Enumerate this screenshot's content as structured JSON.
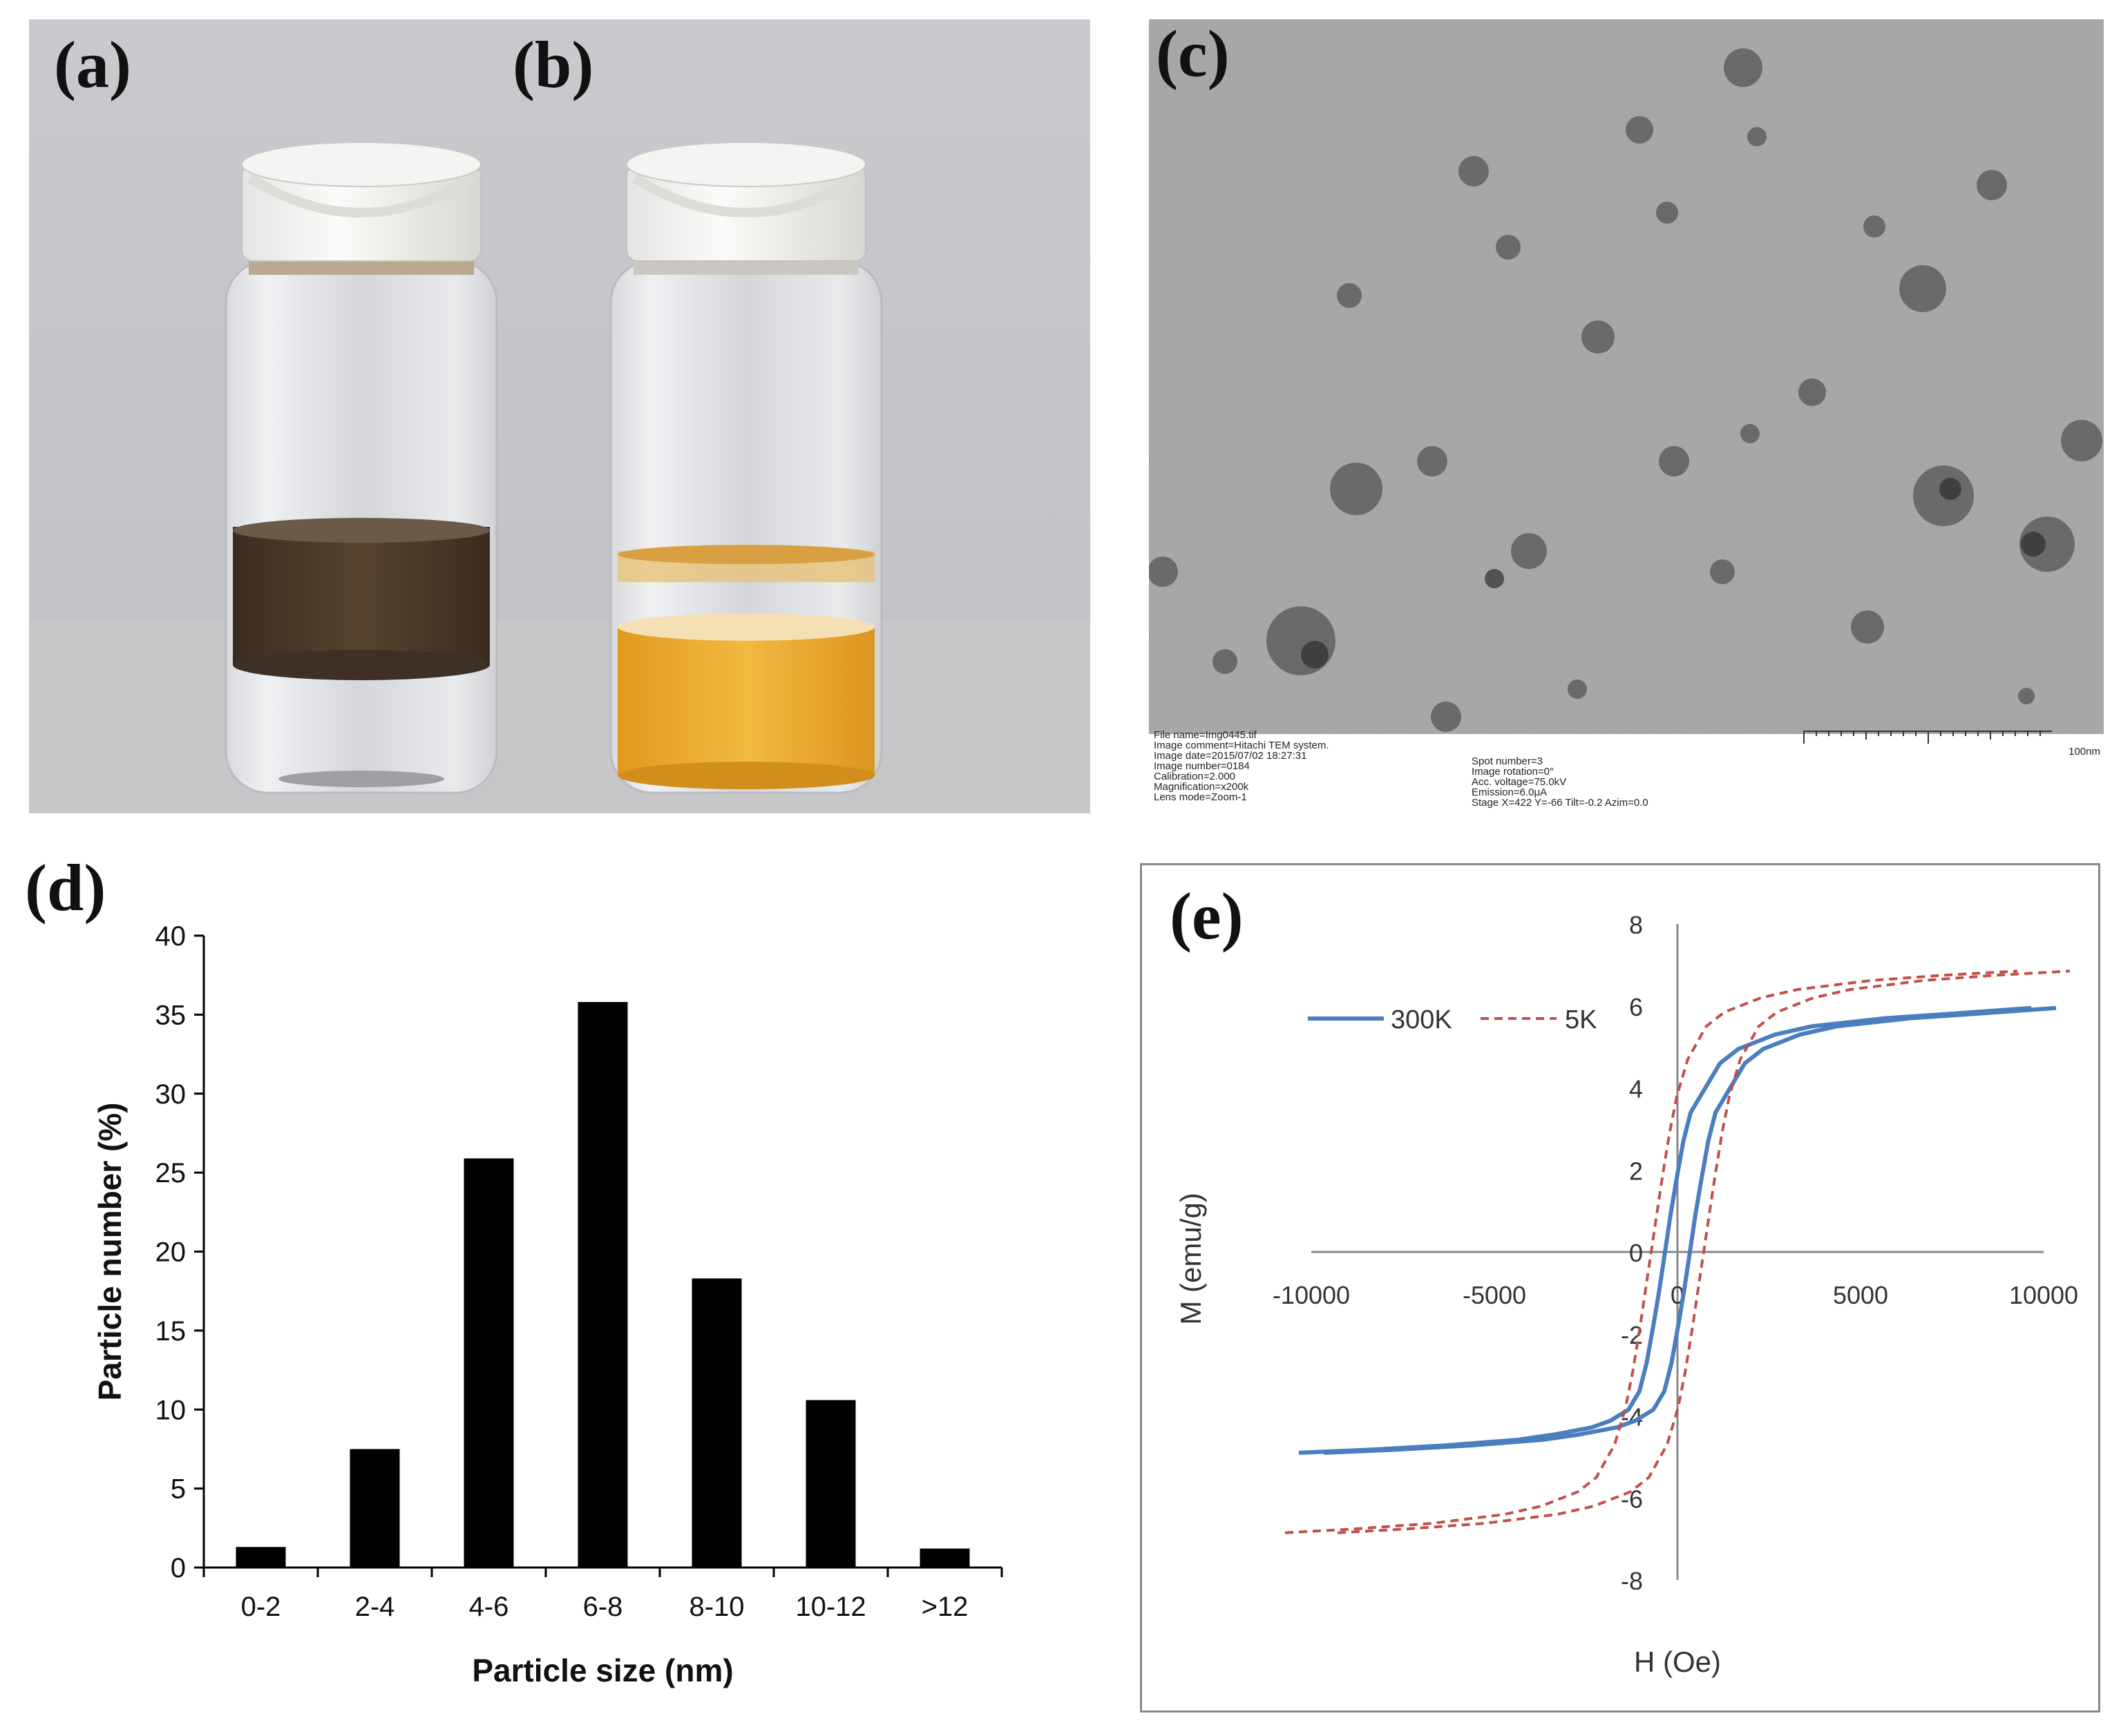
{
  "panels": {
    "a": {
      "label": "(a)"
    },
    "b": {
      "label": "(b)"
    },
    "c": {
      "label": "(c)",
      "meta_left": [
        "File name=Img0445.tif",
        "Image comment=Hitachi TEM system.",
        "Image date=2015/07/02 18:27:31",
        "Image number=0184",
        "Calibration=2.000",
        "Magnification=x200k",
        "Lens mode=Zoom-1"
      ],
      "meta_right": [
        "Spot number=3",
        "Image rotation=0°",
        "Acc. voltage=75.0kV",
        "Emission=6.0μA",
        "Stage X=422 Y=-66 Tilt=-0.2 Azim=0.0"
      ],
      "scale_label": "100nm"
    },
    "d": {
      "label": "(d)"
    },
    "e": {
      "label": "(e)"
    }
  },
  "colors": {
    "bar": "#000000",
    "series_300K": "#4a7ebf",
    "series_5K": "#c0504d",
    "vial_a_liquid": "#4a3a2a",
    "vial_b_liquid": "#e8a830"
  },
  "chart_data": [
    {
      "type": "bar",
      "panel": "d",
      "categories": [
        "0-2",
        "2-4",
        "4-6",
        "6-8",
        "8-10",
        "10-12",
        ">12"
      ],
      "values": [
        1.3,
        7.5,
        25.9,
        35.8,
        18.3,
        10.6,
        1.2
      ],
      "title": "",
      "xlabel": "Particle size (nm)",
      "ylabel": "Particle number (%)",
      "ylim": [
        0,
        40
      ],
      "yticks": [
        "0",
        "5",
        "10",
        "15",
        "20",
        "25",
        "30",
        "35",
        "40"
      ],
      "grid": false
    },
    {
      "type": "line",
      "panel": "e",
      "title": "",
      "xlabel": "H (Oe)",
      "ylabel": "M (emu/g)",
      "xlim": [
        -10000,
        10000
      ],
      "ylim": [
        -8,
        8
      ],
      "xticks": [
        "-10000",
        "-5000",
        "0",
        "5000",
        "10000"
      ],
      "yticks": [
        "-8",
        "-6",
        "-4",
        "-2",
        "0",
        "2",
        "4",
        "6",
        "8"
      ],
      "legend": "top-left",
      "series": [
        {
          "name": "300K",
          "style": "solid",
          "x": [
            -10000,
            -8000,
            -6000,
            -4000,
            -3000,
            -2000,
            -1500,
            -1000,
            -700,
            -500,
            -300,
            -150,
            0,
            150,
            300,
            500,
            700,
            1000,
            1500,
            2000,
            3000,
            4000,
            6000,
            8000,
            10000
          ],
          "y": [
            -4.9,
            -4.82,
            -4.72,
            -4.58,
            -4.45,
            -4.28,
            -4.12,
            -3.85,
            -3.4,
            -2.7,
            -1.7,
            -0.9,
            0.0,
            0.9,
            1.7,
            2.7,
            3.4,
            3.85,
            4.6,
            4.95,
            5.3,
            5.5,
            5.7,
            5.82,
            5.95
          ]
        },
        {
          "name": "5K",
          "style": "dashed",
          "x": [
            -10000,
            -8000,
            -6000,
            -4000,
            -3000,
            -2000,
            -1500,
            -1000,
            -700,
            -500,
            -300,
            -150,
            0,
            150,
            300,
            500,
            700,
            1000,
            1500,
            2000,
            3000,
            4000,
            6000,
            8000,
            10000
          ],
          "y": [
            -6.85,
            -6.75,
            -6.62,
            -6.4,
            -6.2,
            -5.85,
            -5.5,
            -4.7,
            -3.8,
            -2.9,
            -1.8,
            -0.9,
            0.0,
            0.9,
            1.8,
            2.9,
            3.8,
            4.7,
            5.5,
            5.85,
            6.2,
            6.4,
            6.62,
            6.75,
            6.85
          ]
        }
      ]
    }
  ]
}
